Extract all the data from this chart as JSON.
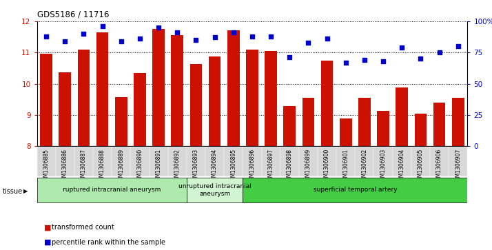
{
  "title": "GDS5186 / 11716",
  "samples": [
    "GSM1306885",
    "GSM1306886",
    "GSM1306887",
    "GSM1306888",
    "GSM1306889",
    "GSM1306890",
    "GSM1306891",
    "GSM1306892",
    "GSM1306893",
    "GSM1306894",
    "GSM1306895",
    "GSM1306896",
    "GSM1306897",
    "GSM1306898",
    "GSM1306899",
    "GSM1306900",
    "GSM1306901",
    "GSM1306902",
    "GSM1306903",
    "GSM1306904",
    "GSM1306905",
    "GSM1306906",
    "GSM1306907"
  ],
  "bar_values": [
    10.95,
    10.37,
    11.1,
    11.65,
    9.57,
    10.35,
    11.75,
    11.55,
    10.62,
    10.88,
    11.7,
    11.1,
    11.05,
    9.28,
    9.55,
    10.73,
    8.88,
    9.55,
    9.13,
    9.88,
    9.05,
    9.4,
    9.55
  ],
  "percentile_values": [
    88,
    84,
    90,
    96,
    84,
    86,
    95,
    91,
    85,
    87,
    91,
    88,
    88,
    71,
    83,
    86,
    67,
    69,
    68,
    79,
    70,
    75,
    80
  ],
  "ylim_left": [
    8,
    12
  ],
  "ylim_right": [
    0,
    100
  ],
  "yticks_left": [
    8,
    9,
    10,
    11,
    12
  ],
  "yticks_right": [
    0,
    25,
    50,
    75,
    100
  ],
  "groups": [
    {
      "label": "ruptured intracranial aneurysm",
      "start": 0,
      "end": 8,
      "color": "#aeeaae"
    },
    {
      "label": "unruptured intracranial\naneurysm",
      "start": 8,
      "end": 11,
      "color": "#d0f5d0"
    },
    {
      "label": "superficial temporal artery",
      "start": 11,
      "end": 23,
      "color": "#44cc44"
    }
  ],
  "bar_color": "#cc1100",
  "dot_color": "#0000cc",
  "bg_color": "#ffffff",
  "tick_bg_color": "#d8d8d8",
  "tissue_label": "tissue",
  "legend_bar_label": "transformed count",
  "legend_dot_label": "percentile rank within the sample"
}
